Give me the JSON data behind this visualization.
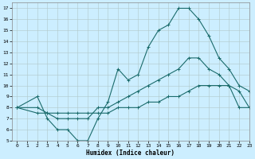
{
  "xlabel": "Humidex (Indice chaleur)",
  "background_color": "#cceeff",
  "line_color": "#1a6b6b",
  "xlim": [
    -0.5,
    23
  ],
  "ylim": [
    5,
    17.5
  ],
  "xticks": [
    0,
    1,
    2,
    3,
    4,
    5,
    6,
    7,
    8,
    9,
    10,
    11,
    12,
    13,
    14,
    15,
    16,
    17,
    18,
    19,
    20,
    21,
    22,
    23
  ],
  "yticks": [
    5,
    6,
    7,
    8,
    9,
    10,
    11,
    12,
    13,
    14,
    15,
    16,
    17
  ],
  "line1_x": [
    0,
    2,
    3,
    4,
    5,
    6,
    7,
    8,
    9,
    10,
    11,
    12,
    13,
    14,
    15,
    16,
    17,
    18,
    19,
    20,
    21,
    22,
    23
  ],
  "line1_y": [
    8,
    9,
    7,
    6,
    6,
    5,
    5,
    7,
    8.5,
    11.5,
    10.5,
    11,
    13.5,
    15,
    15.5,
    17,
    17,
    16,
    14.5,
    12.5,
    11.5,
    10,
    9.5
  ],
  "line2_x": [
    0,
    2,
    3,
    4,
    5,
    6,
    7,
    8,
    9,
    10,
    11,
    12,
    13,
    14,
    15,
    16,
    17,
    18,
    19,
    20,
    21,
    22,
    23
  ],
  "line2_y": [
    8,
    8,
    7.5,
    7,
    7,
    7,
    7,
    8,
    8,
    8.5,
    9,
    9.5,
    10,
    10.5,
    11,
    11.5,
    12.5,
    12.5,
    11.5,
    11,
    10,
    9.5,
    8
  ],
  "line3_x": [
    0,
    2,
    3,
    4,
    5,
    6,
    7,
    8,
    9,
    10,
    11,
    12,
    13,
    14,
    15,
    16,
    17,
    18,
    19,
    20,
    21,
    22,
    23
  ],
  "line3_y": [
    8,
    7.5,
    7.5,
    7.5,
    7.5,
    7.5,
    7.5,
    7.5,
    7.5,
    8,
    8,
    8,
    8.5,
    8.5,
    9,
    9,
    9.5,
    10,
    10,
    10,
    10,
    8,
    8
  ]
}
